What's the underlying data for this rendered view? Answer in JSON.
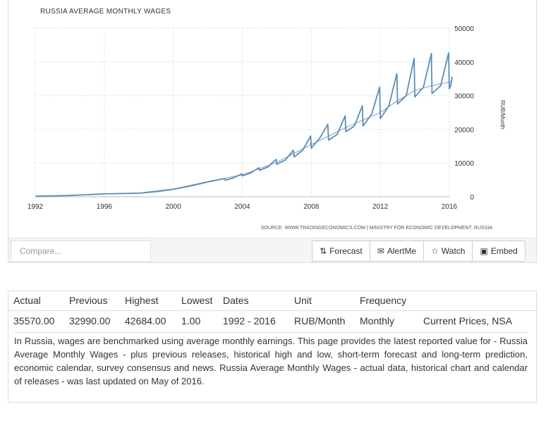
{
  "chart_data": {
    "type": "line",
    "title": "RUSSIA AVERAGE MONTHLY WAGES",
    "ylabel": "RUB/Month",
    "xlim": [
      1992,
      2016
    ],
    "ylim": [
      0,
      50000
    ],
    "x_ticks": [
      "1992",
      "1996",
      "2000",
      "2004",
      "2008",
      "2012",
      "2016"
    ],
    "y_ticks": [
      "50000",
      "40000",
      "30000",
      "20000",
      "10000",
      "0"
    ],
    "y_axis_position": "right",
    "grid": true,
    "source": "SOURCE: WWW.TRADINGECONOMICS.COM | MINISTRY FOR ECONOMIC DEVELOPMENT, RUSSIA",
    "series": [
      {
        "name": "",
        "color": "#5b8db8",
        "points": [
          [
            1992,
            150
          ],
          [
            1993,
            250
          ],
          [
            1994,
            380
          ],
          [
            1995,
            600
          ],
          [
            1996,
            850
          ],
          [
            1997,
            950
          ],
          [
            1998,
            1050
          ],
          [
            1999,
            1500
          ],
          [
            2000,
            2200
          ],
          [
            2001,
            3200
          ],
          [
            2002,
            4400
          ],
          [
            2002.96,
            5400
          ],
          [
            2003,
            4900
          ],
          [
            2003.5,
            5600
          ],
          [
            2003.96,
            6800
          ],
          [
            2004,
            6200
          ],
          [
            2004.5,
            7100
          ],
          [
            2004.96,
            8600
          ],
          [
            2005,
            7800
          ],
          [
            2005.5,
            8900
          ],
          [
            2005.96,
            11100
          ],
          [
            2006,
            9600
          ],
          [
            2006.5,
            10900
          ],
          [
            2006.96,
            13800
          ],
          [
            2007,
            11800
          ],
          [
            2007.5,
            13800
          ],
          [
            2007.96,
            18000
          ],
          [
            2008,
            14400
          ],
          [
            2008.5,
            17500
          ],
          [
            2008.96,
            21500
          ],
          [
            2009,
            16800
          ],
          [
            2009.5,
            18500
          ],
          [
            2009.96,
            24000
          ],
          [
            2010,
            19300
          ],
          [
            2010.5,
            21000
          ],
          [
            2010.96,
            27000
          ],
          [
            2011,
            21000
          ],
          [
            2011.5,
            24500
          ],
          [
            2011.96,
            32500
          ],
          [
            2012,
            23200
          ],
          [
            2012.5,
            27000
          ],
          [
            2012.96,
            36500
          ],
          [
            2013,
            27500
          ],
          [
            2013.5,
            30000
          ],
          [
            2013.96,
            41000
          ],
          [
            2014,
            29600
          ],
          [
            2014.5,
            32500
          ],
          [
            2014.96,
            42500
          ],
          [
            2015,
            30600
          ],
          [
            2015.5,
            33000
          ],
          [
            2015.96,
            42684
          ],
          [
            2016,
            32000
          ],
          [
            2016.08,
            32990
          ],
          [
            2016.17,
            35570
          ]
        ]
      },
      {
        "name": "",
        "color": "#8aaac4",
        "points": [
          [
            1992,
            150
          ],
          [
            1994,
            400
          ],
          [
            1996,
            850
          ],
          [
            1998,
            1100
          ],
          [
            2000,
            2300
          ],
          [
            2002,
            4500
          ],
          [
            2004,
            6500
          ],
          [
            2006,
            10200
          ],
          [
            2008,
            15500
          ],
          [
            2010,
            20500
          ],
          [
            2012,
            25000
          ],
          [
            2013,
            28500
          ],
          [
            2014,
            31500
          ],
          [
            2015,
            33000
          ],
          [
            2016,
            34000
          ],
          [
            2016.17,
            34500
          ]
        ]
      }
    ]
  },
  "toolbar": {
    "compare_placeholder": "Compare...",
    "buttons": [
      {
        "icon": "forecast-icon",
        "glyph": "⇅",
        "label": "Forecast"
      },
      {
        "icon": "alert-icon",
        "glyph": "✉",
        "label": "AlertMe"
      },
      {
        "icon": "star-icon",
        "glyph": "☆",
        "label": "Watch"
      },
      {
        "icon": "embed-icon",
        "glyph": "▣",
        "label": "Embed"
      }
    ]
  },
  "stats": {
    "headers": [
      "Actual",
      "Previous",
      "Highest",
      "Lowest",
      "Dates",
      "Unit",
      "Frequency",
      ""
    ],
    "values": [
      "35570.00",
      "32990.00",
      "42684.00",
      "1.00",
      "1992 - 2016",
      "RUB/Month",
      "Monthly",
      "Current Prices, NSA"
    ]
  },
  "description": "In Russia, wages are benchmarked using average monthly earnings. This page provides the latest reported value for - Russia Average Monthly Wages - plus previous releases, historical high and low, short-term forecast and long-term prediction, economic calendar, survey consensus and news. Russia Average Monthly Wages - actual data, historical chart and calendar of releases - was last updated on May of 2016."
}
